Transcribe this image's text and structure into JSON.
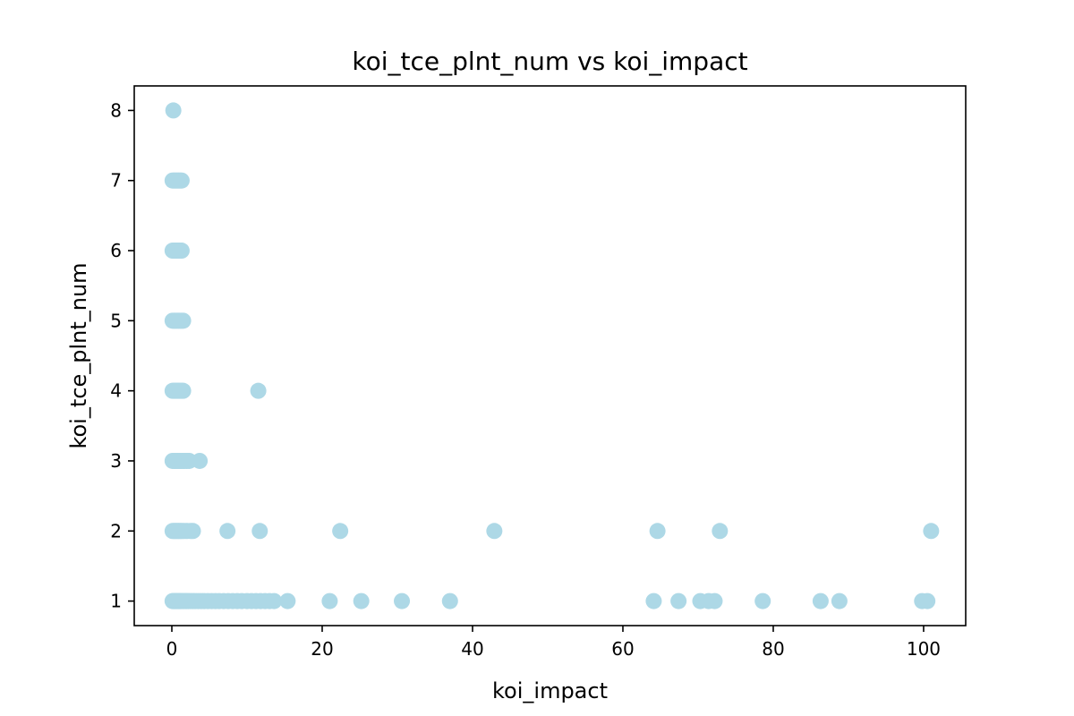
{
  "chart_data": {
    "type": "scatter",
    "title": "koi_tce_plnt_num vs koi_impact",
    "xlabel": "koi_impact",
    "ylabel": "koi_tce_plnt_num",
    "xlim": [
      -5.0,
      105.6
    ],
    "ylim": [
      0.65,
      8.35
    ],
    "xticks": [
      0,
      20,
      40,
      60,
      80,
      100
    ],
    "yticks": [
      1,
      2,
      3,
      4,
      5,
      6,
      7,
      8
    ],
    "grid": false,
    "legend": "none",
    "marker_color": "#add8e6",
    "series": [
      {
        "x": [
          0.1,
          0.2,
          0.3,
          0.4,
          0.5,
          0.6,
          0.7,
          0.8,
          0.9,
          1.0,
          1.1,
          1.2,
          1.4,
          1.6,
          1.8,
          2.0,
          2.2,
          2.5,
          2.8,
          3.1,
          3.5,
          3.9,
          4.3,
          4.8,
          5.3,
          5.8,
          6.3,
          6.9,
          7.5,
          8.1,
          8.7,
          9.3,
          10.0,
          10.6,
          11.2,
          11.8,
          12.4,
          13.0,
          13.6,
          15.4,
          21.0,
          25.2,
          30.6,
          37.0,
          64.1,
          67.4,
          70.3,
          71.4,
          72.2,
          78.6,
          86.3,
          88.8,
          99.8,
          100.5,
          0.1,
          0.3,
          0.5,
          0.7,
          0.9,
          1.1,
          1.3,
          1.6,
          2.0,
          2.5,
          2.8,
          7.4,
          11.7,
          22.4,
          42.9,
          64.6,
          72.9,
          101.0,
          0.1,
          0.3,
          0.5,
          0.7,
          0.9,
          1.1,
          1.3,
          1.5,
          1.7,
          2.0,
          2.3,
          3.7,
          0.1,
          0.3,
          0.5,
          0.7,
          0.9,
          1.1,
          1.3,
          1.5,
          11.5,
          0.1,
          0.3,
          0.5,
          0.7,
          0.9,
          1.1,
          1.3,
          1.5,
          0.1,
          0.3,
          0.5,
          0.7,
          0.9,
          1.1,
          1.3,
          0.1,
          0.3,
          0.5,
          0.7,
          0.9,
          1.1,
          1.3,
          0.2
        ],
        "y": [
          1,
          1,
          1,
          1,
          1,
          1,
          1,
          1,
          1,
          1,
          1,
          1,
          1,
          1,
          1,
          1,
          1,
          1,
          1,
          1,
          1,
          1,
          1,
          1,
          1,
          1,
          1,
          1,
          1,
          1,
          1,
          1,
          1,
          1,
          1,
          1,
          1,
          1,
          1,
          1,
          1,
          1,
          1,
          1,
          1,
          1,
          1,
          1,
          1,
          1,
          1,
          1,
          1,
          1,
          2,
          2,
          2,
          2,
          2,
          2,
          2,
          2,
          2,
          2,
          2,
          2,
          2,
          2,
          2,
          2,
          2,
          2,
          3,
          3,
          3,
          3,
          3,
          3,
          3,
          3,
          3,
          3,
          3,
          3,
          4,
          4,
          4,
          4,
          4,
          4,
          4,
          4,
          4,
          5,
          5,
          5,
          5,
          5,
          5,
          5,
          5,
          6,
          6,
          6,
          6,
          6,
          6,
          6,
          7,
          7,
          7,
          7,
          7,
          7,
          7,
          8
        ]
      }
    ]
  }
}
